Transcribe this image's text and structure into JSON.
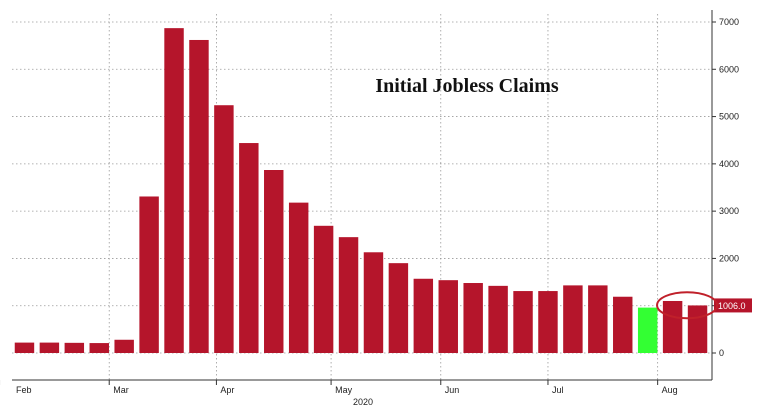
{
  "chart_data": {
    "type": "bar",
    "title": "Initial Jobless Claims",
    "xlabel": "2020",
    "ylabel": "",
    "ylim": [
      0,
      7000
    ],
    "y_ticks": [
      0,
      1000,
      2000,
      3000,
      4000,
      5000,
      6000,
      7000
    ],
    "y_axis_side": "right",
    "grid": true,
    "month_labels": [
      {
        "label": "Feb",
        "at_bar": -0.5
      },
      {
        "label": "Mar",
        "at_bar": 3.9
      },
      {
        "label": "Apr",
        "at_bar": 8.2
      },
      {
        "label": "May",
        "at_bar": 12.8
      },
      {
        "label": "Jun",
        "at_bar": 17.2
      },
      {
        "label": "Jul",
        "at_bar": 21.5
      },
      {
        "label": "Aug",
        "at_bar": 25.9
      }
    ],
    "values": [
      220,
      220,
      215,
      210,
      280,
      3310,
      6870,
      6620,
      5240,
      4440,
      3870,
      3180,
      2690,
      2450,
      2130,
      1900,
      1570,
      1540,
      1480,
      1420,
      1310,
      1310,
      1430,
      1430,
      1190,
      960,
      1100,
      1006
    ],
    "colors": {
      "bar": "#b5152b",
      "highlight": "#33ff33",
      "flag": "#b5152b",
      "circle": "#c0202a"
    },
    "highlight_index": 25,
    "last_value_label": "1006.0",
    "circled_indices": [
      26,
      27
    ]
  }
}
